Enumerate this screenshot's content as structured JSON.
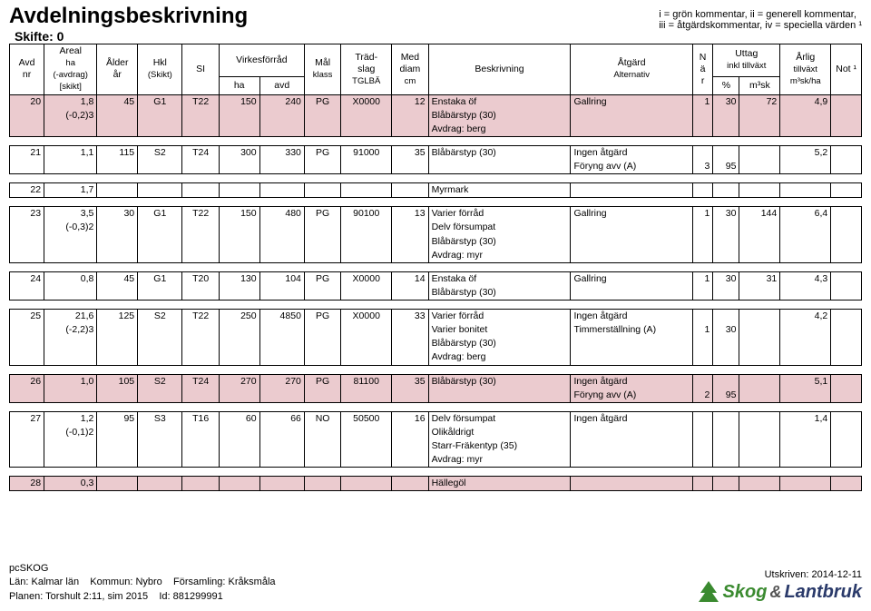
{
  "title": "Avdelningsbeskrivning",
  "skifte_label": "Skifte: 0",
  "legend_line1": "i = grön kommentar, ii = generell kommentar,",
  "legend_line2": "iii = åtgärdskommentar, iv = speciella värden ¹",
  "headers": {
    "avd": "Avd",
    "avd_sub": "nr",
    "areal": "Areal",
    "areal_sub1": "ha",
    "areal_sub2": "(-avdrag)",
    "areal_sub3": "[skikt]",
    "alder": "Ålder",
    "alder_sub": "år",
    "hkl": "Hkl",
    "hkl_sub": "(Skikt)",
    "si": "SI",
    "virkes": "Virkesförråd",
    "virkes_ha": "ha",
    "virkes_avd": "avd",
    "mal": "Mål",
    "mal_sub": "klass",
    "trad": "Träd-",
    "trad_sub1": "slag",
    "trad_sub2": "TGLBÄ",
    "diam": "Med",
    "diam_sub1": "diam",
    "diam_sub2": "cm",
    "besk": "Beskrivning",
    "atg": "Åtgärd",
    "atg_sub": "Alternativ",
    "nar": "N",
    "nar_sub1": "ä",
    "nar_sub2": "r",
    "uttag": "Uttag",
    "uttag_sub": "inkl tillväxt",
    "uttag_pct": "%",
    "uttag_m3": "m³sk",
    "arlig": "Årlig",
    "arlig_sub1": "tillväxt",
    "arlig_sub2": "m³sk/ha",
    "not": "Not ¹"
  },
  "rows": [
    {
      "shade": "pink",
      "avd": "20",
      "areal": [
        "1,8",
        "(-0,2)3"
      ],
      "alder": "45",
      "hkl": "G1",
      "si": "T22",
      "vf_ha": "150",
      "vf_avd": "240",
      "mal": "PG",
      "trad": "X0000",
      "diam": "12",
      "besk": [
        "Enstaka öf",
        "Blåbärstyp (30)",
        "Avdrag: berg"
      ],
      "atg": [
        "Gallring"
      ],
      "nar": [
        "1"
      ],
      "upct": [
        "30"
      ],
      "um3": [
        "72"
      ],
      "arlig": "4,9",
      "not": ""
    },
    {
      "avd": "21",
      "areal": [
        "1,1"
      ],
      "alder": "115",
      "hkl": "S2",
      "si": "T24",
      "vf_ha": "300",
      "vf_avd": "330",
      "mal": "PG",
      "trad": "91000",
      "diam": "35",
      "besk": [
        "Blåbärstyp (30)"
      ],
      "atg": [
        "Ingen åtgärd",
        "Föryng avv (A)"
      ],
      "nar": [
        "",
        "3"
      ],
      "upct": [
        "",
        "95"
      ],
      "um3": [
        ""
      ],
      "arlig": "5,2",
      "not": ""
    },
    {
      "avd": "22",
      "areal": [
        "1,7"
      ],
      "alder": "",
      "hkl": "",
      "si": "",
      "vf_ha": "",
      "vf_avd": "",
      "mal": "",
      "trad": "",
      "diam": "",
      "besk": [
        "Myrmark"
      ],
      "atg": [
        ""
      ],
      "nar": [
        ""
      ],
      "upct": [
        ""
      ],
      "um3": [
        ""
      ],
      "arlig": "",
      "not": ""
    },
    {
      "avd": "23",
      "areal": [
        "3,5",
        "(-0,3)2"
      ],
      "alder": "30",
      "hkl": "G1",
      "si": "T22",
      "vf_ha": "150",
      "vf_avd": "480",
      "mal": "PG",
      "trad": "90100",
      "diam": "13",
      "besk": [
        "Varier förråd",
        "Delv försumpat",
        "Blåbärstyp (30)",
        "Avdrag: myr"
      ],
      "atg": [
        "Gallring"
      ],
      "nar": [
        "1"
      ],
      "upct": [
        "30"
      ],
      "um3": [
        "144"
      ],
      "arlig": "6,4",
      "not": ""
    },
    {
      "avd": "24",
      "areal": [
        "0,8"
      ],
      "alder": "45",
      "hkl": "G1",
      "si": "T20",
      "vf_ha": "130",
      "vf_avd": "104",
      "mal": "PG",
      "trad": "X0000",
      "diam": "14",
      "besk": [
        "Enstaka öf",
        "Blåbärstyp (30)"
      ],
      "atg": [
        "Gallring"
      ],
      "nar": [
        "1"
      ],
      "upct": [
        "30"
      ],
      "um3": [
        "31"
      ],
      "arlig": "4,3",
      "not": ""
    },
    {
      "avd": "25",
      "areal": [
        "21,6",
        "(-2,2)3"
      ],
      "alder": "125",
      "hkl": "S2",
      "si": "T22",
      "vf_ha": "250",
      "vf_avd": "4850",
      "mal": "PG",
      "trad": "X0000",
      "diam": "33",
      "besk": [
        "Varier förråd",
        "Varier bonitet",
        "Blåbärstyp (30)",
        "Avdrag: berg"
      ],
      "atg": [
        "Ingen åtgärd",
        "Timmerställning (A)"
      ],
      "nar": [
        "",
        "1"
      ],
      "upct": [
        "",
        "30"
      ],
      "um3": [
        ""
      ],
      "arlig": "4,2",
      "not": ""
    },
    {
      "shade": "pink",
      "avd": "26",
      "areal": [
        "1,0"
      ],
      "alder": "105",
      "hkl": "S2",
      "si": "T24",
      "vf_ha": "270",
      "vf_avd": "270",
      "mal": "PG",
      "trad": "81100",
      "diam": "35",
      "besk": [
        "Blåbärstyp (30)"
      ],
      "atg": [
        "Ingen åtgärd",
        "Föryng avv (A)"
      ],
      "nar": [
        "",
        "2"
      ],
      "upct": [
        "",
        "95"
      ],
      "um3": [
        ""
      ],
      "arlig": "5,1",
      "not": ""
    },
    {
      "avd": "27",
      "areal": [
        "1,2",
        "(-0,1)2"
      ],
      "alder": "95",
      "hkl": "S3",
      "si": "T16",
      "vf_ha": "60",
      "vf_avd": "66",
      "mal": "NO",
      "trad": "50500",
      "diam": "16",
      "besk": [
        "Delv försumpat",
        "Olikåldrigt",
        "Starr-Fräkentyp (35)",
        "Avdrag: myr"
      ],
      "atg": [
        "Ingen åtgärd"
      ],
      "nar": [
        ""
      ],
      "upct": [
        ""
      ],
      "um3": [
        ""
      ],
      "arlig": "1,4",
      "not": ""
    },
    {
      "shade": "pink",
      "avd": "28",
      "areal": [
        "0,3"
      ],
      "alder": "",
      "hkl": "",
      "si": "",
      "vf_ha": "",
      "vf_avd": "",
      "mal": "",
      "trad": "",
      "diam": "",
      "besk": [
        "Hällegöl"
      ],
      "atg": [
        ""
      ],
      "nar": [
        ""
      ],
      "upct": [
        ""
      ],
      "um3": [
        ""
      ],
      "arlig": "",
      "not": ""
    }
  ],
  "footer": {
    "pcskog": "pcSKOG",
    "lan_label": "Län:",
    "lan": "Kalmar län",
    "kommun_label": "Kommun:",
    "kommun": "Nybro",
    "forsamling_label": "Församling:",
    "forsamling": "Kråksmåla",
    "planen_label": "Planen:",
    "planen": "Torshult 2:11, sim 2015",
    "id_label": "Id:",
    "id": "881299991",
    "utskriven_label": "Utskriven:",
    "utskriven": "2014-12-11",
    "brand1": "Skog",
    "brand_amp": "&",
    "brand2": "Lantbruk"
  },
  "colors": {
    "pink": "#ebcbcf",
    "logo_green": "#3a8a2f",
    "logo_text_green": "#3a8a2f",
    "logo_text_blue": "#2a3a6a"
  }
}
